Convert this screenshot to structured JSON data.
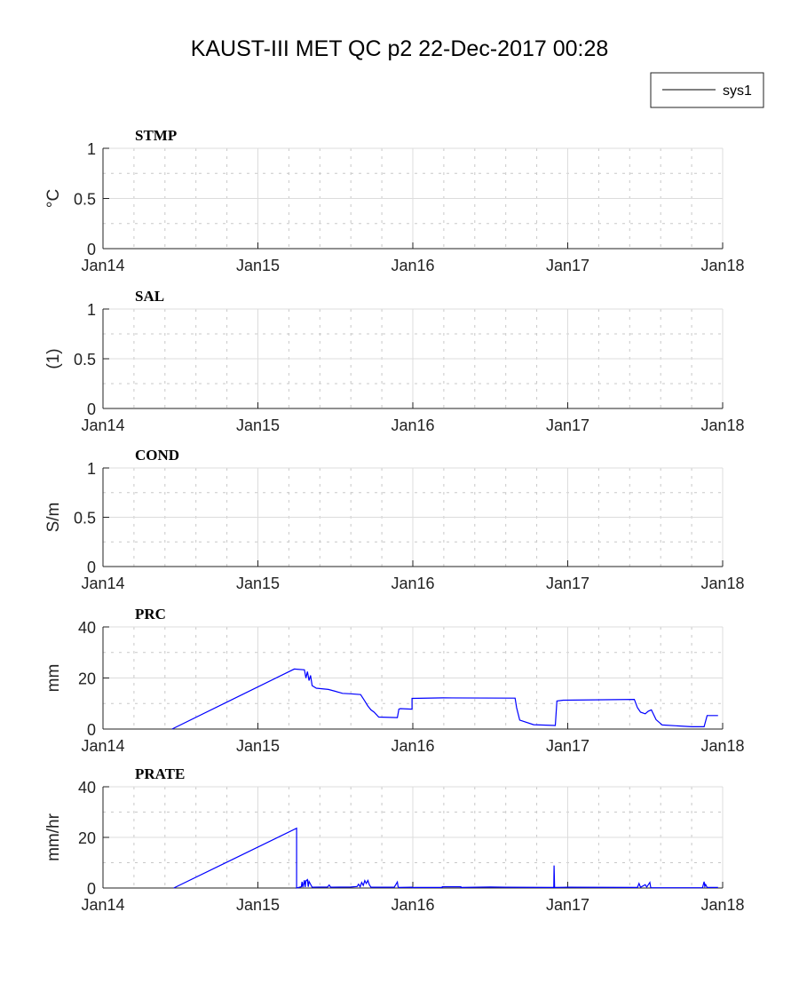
{
  "chart_data": {
    "title": "KAUST-III MET QC p2 22-Dec-2017 00:28",
    "legend": {
      "entries": [
        "sys1"
      ],
      "placement": "top-right"
    },
    "x_tick_labels": [
      "Jan14",
      "Jan15",
      "Jan16",
      "Jan17",
      "Jan18"
    ],
    "x_unit": "years since Jan 2014",
    "xlim": [
      0,
      4
    ],
    "line_color": "#0000ff",
    "plots": [
      {
        "title": "STMP",
        "type": "line",
        "ylabel": "°C",
        "ylim": [
          0,
          1
        ],
        "yticks": [
          "0",
          "0.5",
          "1"
        ],
        "grid": true,
        "series": []
      },
      {
        "title": "SAL",
        "type": "line",
        "ylabel": "(1)",
        "ylim": [
          0,
          1
        ],
        "yticks": [
          "0",
          "0.5",
          "1"
        ],
        "grid": true,
        "series": []
      },
      {
        "title": "COND",
        "type": "line",
        "ylabel": "S/m",
        "ylim": [
          0,
          1
        ],
        "yticks": [
          "0",
          "0.5",
          "1"
        ],
        "grid": true,
        "series": []
      },
      {
        "title": "PRC",
        "type": "line",
        "ylabel": "mm",
        "ylim": [
          0,
          40
        ],
        "yticks": [
          "0",
          "20",
          "40"
        ],
        "grid": true,
        "series": [
          {
            "name": "sys1",
            "x": [
              0.446,
              1.235,
              1.3,
              1.31,
              1.32,
              1.33,
              1.34,
              1.35,
              1.377,
              1.455,
              1.5,
              1.546,
              1.6,
              1.663,
              1.69,
              1.71,
              1.73,
              1.75,
              1.78,
              1.9,
              1.91,
              1.92,
              1.995,
              1.995,
              2.195,
              2.66,
              2.67,
              2.69,
              2.78,
              2.92,
              2.93,
              2.97,
              3.43,
              3.45,
              3.47,
              3.5,
              3.52,
              3.54,
              3.57,
              3.61,
              3.8,
              3.88,
              3.9,
              3.97
            ],
            "y": [
              0,
              23.5,
              23.2,
              20,
              22.5,
              19,
              21,
              17,
              16,
              15.5,
              14.8,
              14,
              13.8,
              13.5,
              11,
              9,
              7.5,
              6.6,
              4.7,
              4.5,
              7.8,
              8,
              7.8,
              12,
              12.2,
              12.1,
              8.4,
              3.5,
              1.7,
              1.4,
              11,
              11.3,
              11.6,
              8.4,
              6.6,
              6,
              7,
              7.5,
              3.7,
              1.6,
              0.9,
              0.9,
              5.3,
              5.3
            ]
          }
        ]
      },
      {
        "title": "PRATE",
        "type": "line",
        "ylabel": "mm/hr",
        "ylim": [
          0,
          40
        ],
        "yticks": [
          "0",
          "20",
          "40"
        ],
        "grid": true,
        "series": [
          {
            "name": "sys1",
            "x": [
              0.457,
              1.25,
              1.25,
              1.28,
              1.285,
              1.29,
              1.3,
              1.305,
              1.31,
              1.32,
              1.325,
              1.33,
              1.35,
              1.45,
              1.46,
              1.47,
              1.6,
              1.64,
              1.65,
              1.66,
              1.67,
              1.68,
              1.69,
              1.7,
              1.71,
              1.72,
              1.73,
              1.88,
              1.9,
              1.905,
              1.91,
              1.995,
              2.0,
              2.01,
              2.19,
              2.19,
              2.31,
              2.31,
              2.5,
              2.6,
              2.91,
              2.912,
              2.915,
              2.92,
              3.0,
              3.45,
              3.46,
              3.47,
              3.5,
              3.51,
              3.53,
              3.535,
              3.54,
              3.87,
              3.88,
              3.885,
              3.89,
              3.9,
              3.97
            ],
            "y": [
              0,
              23.6,
              0,
              0.5,
              2.5,
              0.3,
              3.1,
              0.4,
              2.8,
              3.3,
              0.5,
              2.6,
              0.3,
              0.4,
              1.2,
              0.3,
              0.4,
              0.6,
              1.5,
              0.5,
              2.2,
              1.0,
              2.9,
              1.8,
              3.0,
              1.2,
              0.3,
              0.3,
              2.4,
              0.5,
              0.2,
              0.3,
              0.1,
              0.2,
              0.2,
              0.5,
              0.5,
              0.2,
              0.4,
              0.3,
              0.2,
              8.9,
              0.2,
              0.2,
              0.3,
              0.2,
              1.8,
              0.3,
              1.3,
              0.4,
              2.2,
              0.3,
              0.1,
              0.1,
              2.5,
              0.6,
              1.4,
              0.2,
              0.2
            ]
          }
        ]
      }
    ]
  }
}
